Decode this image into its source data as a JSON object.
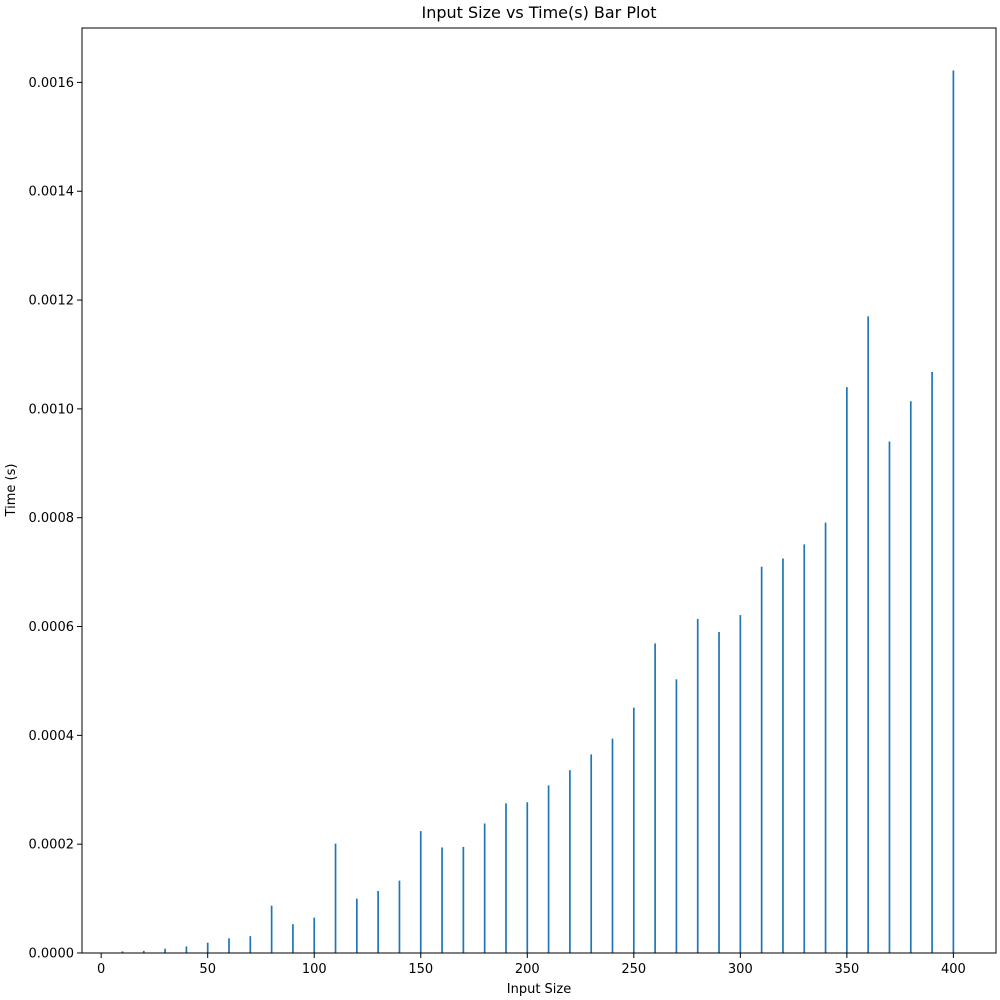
{
  "chart_data": {
    "type": "bar",
    "title": "Input Size vs Time(s) Bar Plot",
    "xlabel": "Input Size",
    "ylabel": "Time (s)",
    "x": [
      0,
      10,
      20,
      30,
      40,
      50,
      60,
      70,
      80,
      90,
      100,
      110,
      120,
      130,
      140,
      150,
      160,
      170,
      180,
      190,
      200,
      210,
      220,
      230,
      240,
      250,
      260,
      270,
      280,
      290,
      300,
      310,
      320,
      330,
      340,
      350,
      360,
      370,
      380,
      390,
      400
    ],
    "values": [
      0.0,
      3e-06,
      4e-06,
      8e-06,
      1.2e-05,
      1.9e-05,
      2.7e-05,
      3.1e-05,
      8.7e-05,
      5.3e-05,
      6.5e-05,
      0.000201,
      0.0001,
      0.000114,
      0.000133,
      0.000224,
      0.000194,
      0.000195,
      0.000238,
      0.000275,
      0.000277,
      0.000308,
      0.000336,
      0.000365,
      0.000394,
      0.000451,
      0.000569,
      0.000503,
      0.000614,
      0.00059,
      0.000621,
      0.00071,
      0.000725,
      0.000751,
      0.000791,
      0.00104,
      0.00117,
      0.00094,
      0.001014,
      0.001068,
      0.001622
    ],
    "xlim": [
      -9,
      420
    ],
    "ylim": [
      0,
      0.0017
    ],
    "xticks": [
      0,
      50,
      100,
      150,
      200,
      250,
      300,
      350,
      400
    ],
    "xtick_labels": [
      "0",
      "50",
      "100",
      "150",
      "200",
      "250",
      "300",
      "350",
      "400"
    ],
    "yticks": [
      0,
      0.0002,
      0.0004,
      0.0006,
      0.0008,
      0.001,
      0.0012,
      0.0014,
      0.0016
    ],
    "ytick_labels": [
      "0.0000",
      "0.0002",
      "0.0004",
      "0.0006",
      "0.0008",
      "0.0010",
      "0.0012",
      "0.0014",
      "0.0016"
    ],
    "bar_color": "#1f77b4",
    "grid": false,
    "legend": "none"
  }
}
